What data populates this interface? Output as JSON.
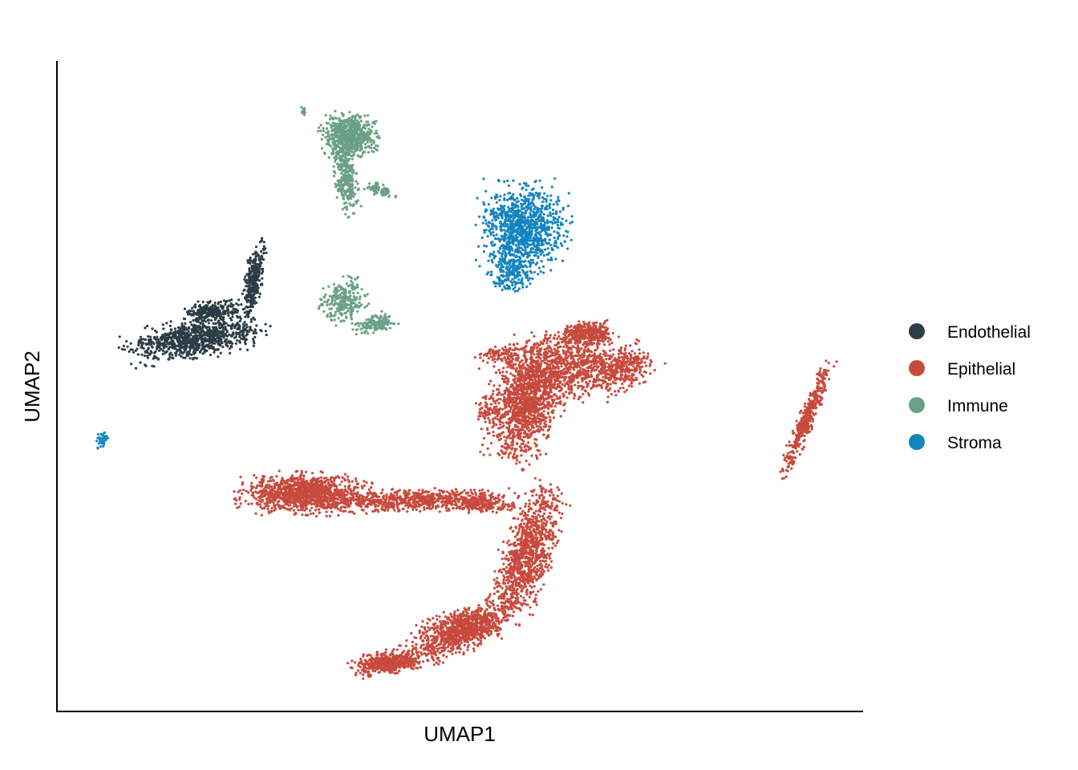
{
  "chart_data": {
    "type": "scatter",
    "title": "",
    "xlabel": "UMAP1",
    "ylabel": "UMAP2",
    "xlim": [
      0,
      100
    ],
    "ylim": [
      0,
      100
    ],
    "show_ticks": false,
    "grid": false,
    "legend": {
      "position": "right",
      "entries": [
        {
          "name": "Endothelial",
          "color": "#2b3d45"
        },
        {
          "name": "Epithelial",
          "color": "#c84a3d"
        },
        {
          "name": "Immune",
          "color": "#6aa086"
        },
        {
          "name": "Stroma",
          "color": "#1384c0"
        }
      ]
    },
    "series": [
      {
        "name": "Endothelial",
        "color": "#2b3d45",
        "clusters": [
          {
            "cx": 17.0,
            "cy": 57.6,
            "rx": 7.5,
            "ry": 2.6,
            "rot": 12,
            "n": 900
          },
          {
            "cx": 19.0,
            "cy": 62.0,
            "rx": 3.0,
            "ry": 1.5,
            "rot": 10,
            "n": 250
          },
          {
            "cx": 24.2,
            "cy": 66.5,
            "rx": 0.9,
            "ry": 6.0,
            "rot": -8,
            "n": 320
          }
        ]
      },
      {
        "name": "Epithelial",
        "color": "#c84a3d",
        "clusters": [
          {
            "cx": 30.5,
            "cy": 33.3,
            "rx": 7.0,
            "ry": 2.8,
            "rot": 0,
            "n": 1200
          },
          {
            "cx": 45.0,
            "cy": 32.3,
            "rx": 10.5,
            "ry": 1.6,
            "rot": 2,
            "n": 700
          },
          {
            "cx": 53.0,
            "cy": 31.5,
            "rx": 3.5,
            "ry": 1.0,
            "rot": 0,
            "n": 150
          },
          {
            "cx": 58.5,
            "cy": 48.0,
            "rx": 4.0,
            "ry": 8.5,
            "rot": -12,
            "n": 1400
          },
          {
            "cx": 64.5,
            "cy": 53.5,
            "rx": 6.0,
            "ry": 4.5,
            "rot": -15,
            "n": 700
          },
          {
            "cx": 66.0,
            "cy": 58.5,
            "rx": 2.8,
            "ry": 1.6,
            "rot": 0,
            "n": 350
          },
          {
            "cx": 70.5,
            "cy": 53.0,
            "rx": 4.0,
            "ry": 2.8,
            "rot": 30,
            "n": 300
          },
          {
            "cx": 58.5,
            "cy": 24.0,
            "rx": 2.8,
            "ry": 9.5,
            "rot": -15,
            "n": 1000
          },
          {
            "cx": 50.5,
            "cy": 12.0,
            "rx": 6.5,
            "ry": 2.8,
            "rot": 28,
            "n": 1000
          },
          {
            "cx": 41.0,
            "cy": 6.8,
            "rx": 4.0,
            "ry": 1.6,
            "rot": 10,
            "n": 500
          },
          {
            "cx": 55.0,
            "cy": 55.0,
            "rx": 2.5,
            "ry": 1.5,
            "rot": 10,
            "n": 100
          },
          {
            "cx": 53.5,
            "cy": 46.5,
            "rx": 1.2,
            "ry": 2.5,
            "rot": 0,
            "n": 60
          },
          {
            "cx": 93.5,
            "cy": 45.0,
            "rx": 0.9,
            "ry": 8.0,
            "rot": -18,
            "n": 400
          }
        ]
      },
      {
        "name": "Immune",
        "color": "#6aa086",
        "clusters": [
          {
            "cx": 36.2,
            "cy": 89.5,
            "rx": 3.0,
            "ry": 3.0,
            "rot": 0,
            "n": 650
          },
          {
            "cx": 35.7,
            "cy": 83.0,
            "rx": 1.2,
            "ry": 5.0,
            "rot": 8,
            "n": 300
          },
          {
            "cx": 40.0,
            "cy": 81.0,
            "rx": 1.8,
            "ry": 0.8,
            "rot": -25,
            "n": 80
          },
          {
            "cx": 35.5,
            "cy": 63.5,
            "rx": 2.5,
            "ry": 3.2,
            "rot": 0,
            "n": 260
          },
          {
            "cx": 39.5,
            "cy": 60.0,
            "rx": 2.3,
            "ry": 1.3,
            "rot": 25,
            "n": 140
          },
          {
            "cx": 30.5,
            "cy": 93.5,
            "rx": 0.4,
            "ry": 0.6,
            "rot": 0,
            "n": 15
          }
        ]
      },
      {
        "name": "Stroma",
        "color": "#1384c0",
        "clusters": [
          {
            "cx": 58.0,
            "cy": 75.0,
            "rx": 4.8,
            "ry": 6.0,
            "rot": 0,
            "n": 1000
          },
          {
            "cx": 56.5,
            "cy": 68.0,
            "rx": 2.5,
            "ry": 3.0,
            "rot": 0,
            "n": 200
          },
          {
            "cx": 5.3,
            "cy": 41.8,
            "rx": 0.8,
            "ry": 1.3,
            "rot": 0,
            "n": 40
          }
        ]
      }
    ]
  }
}
